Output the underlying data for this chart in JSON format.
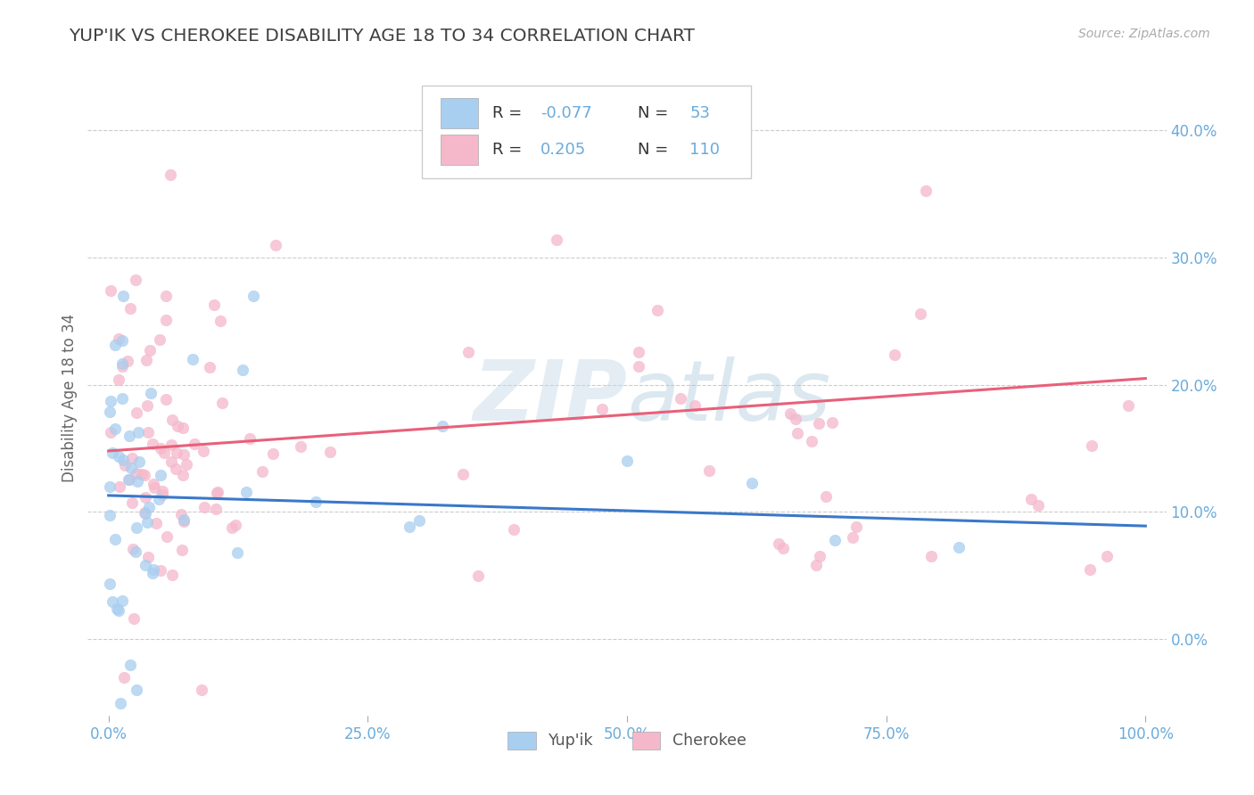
{
  "title": "YUP'IK VS CHEROKEE DISABILITY AGE 18 TO 34 CORRELATION CHART",
  "source": "Source: ZipAtlas.com",
  "ylabel": "Disability Age 18 to 34",
  "xlim": [
    -0.02,
    1.02
  ],
  "ylim": [
    -0.06,
    0.44
  ],
  "yticks": [
    0.0,
    0.1,
    0.2,
    0.3,
    0.4
  ],
  "ytick_labels": [
    "0.0%",
    "10.0%",
    "20.0%",
    "30.0%",
    "40.0%"
  ],
  "xticks": [
    0.0,
    0.25,
    0.5,
    0.75,
    1.0
  ],
  "xtick_labels": [
    "0.0%",
    "25.0%",
    "50.0%",
    "75.0%",
    "100.0%"
  ],
  "yupik_color": "#a8cef0",
  "cherokee_color": "#f5b8cb",
  "yupik_line_color": "#3a78c9",
  "cherokee_line_color": "#e8607a",
  "R_yupik": -0.077,
  "N_yupik": 53,
  "R_cherokee": 0.205,
  "N_cherokee": 110,
  "yupik_line_start_y": 0.113,
  "yupik_line_end_y": 0.089,
  "cherokee_line_start_y": 0.148,
  "cherokee_line_end_y": 0.205,
  "background_color": "#ffffff",
  "grid_color": "#cccccc",
  "title_color": "#404040",
  "watermark_color": "#d8e8f0",
  "tick_color": "#6aabdb",
  "axis_label_color": "#666666"
}
